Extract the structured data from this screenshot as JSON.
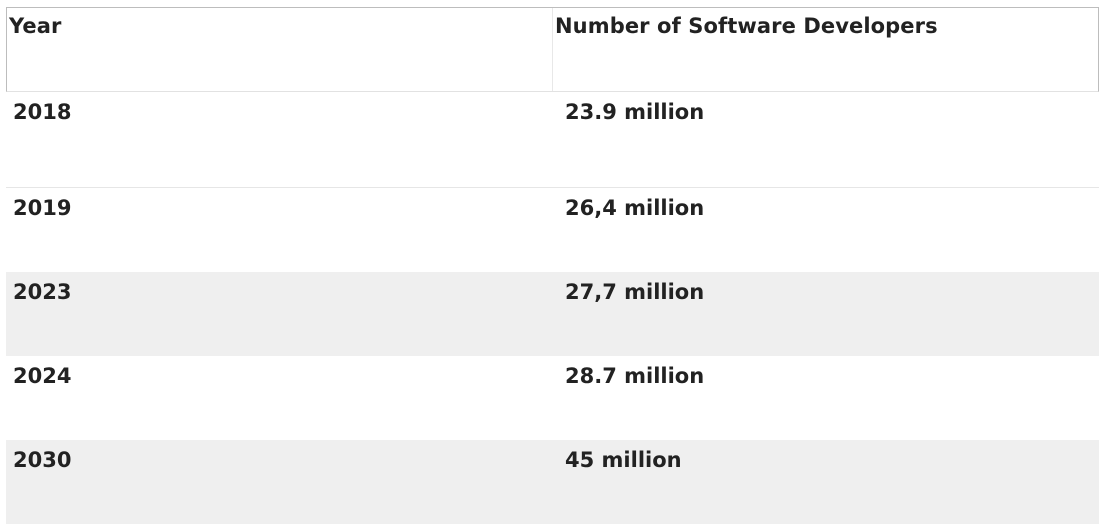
{
  "table": {
    "headers": [
      "Year",
      "Number of Software Developers"
    ],
    "rows": [
      {
        "year": "2018",
        "developers": "23.9 million"
      },
      {
        "year": "2019",
        "developers": "26,4 million"
      },
      {
        "year": "2023",
        "developers": "27,7 million"
      },
      {
        "year": "2024",
        "developers": "28.7 million"
      },
      {
        "year": "2030",
        "developers": "45 million"
      }
    ]
  }
}
